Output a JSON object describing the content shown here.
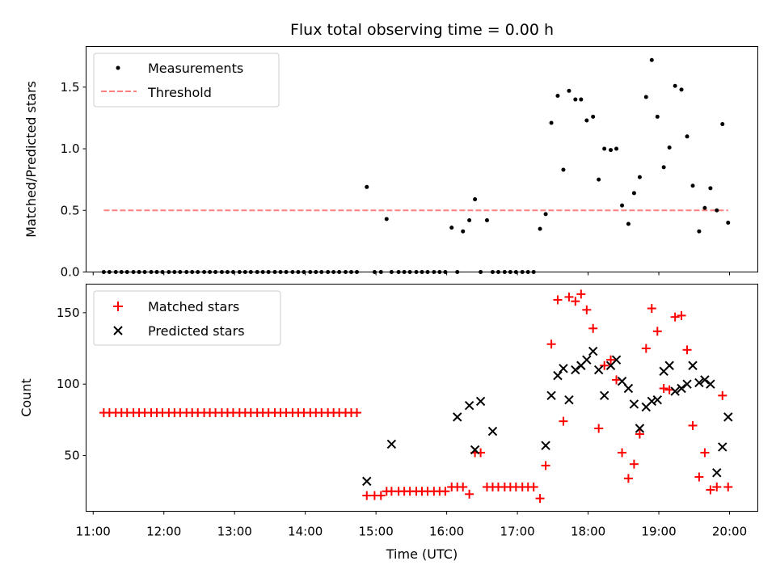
{
  "chart_data": [
    {
      "type": "scatter",
      "title": "Flux total observing time = 0.00 h",
      "xlabel": "",
      "ylabel": "Matched/Predicted stars",
      "xlim": [
        10.9,
        20.4
      ],
      "ylim": [
        0,
        1.83
      ],
      "yticks": [
        "0.0",
        "0.5",
        "1.0",
        "1.5"
      ],
      "ytick_values": [
        0,
        0.5,
        1.0,
        1.5
      ],
      "legend_position": "upper-left",
      "series": [
        {
          "name": "Measurements",
          "marker": "dot",
          "color": "#000000",
          "x": [
            11.15,
            11.23,
            11.32,
            11.4,
            11.48,
            11.57,
            11.65,
            11.73,
            11.82,
            11.9,
            11.98,
            12.07,
            12.15,
            12.23,
            12.32,
            12.4,
            12.48,
            12.57,
            12.65,
            12.73,
            12.82,
            12.9,
            12.98,
            13.07,
            13.15,
            13.23,
            13.32,
            13.4,
            13.48,
            13.57,
            13.65,
            13.73,
            13.82,
            13.9,
            13.98,
            14.07,
            14.15,
            14.23,
            14.32,
            14.4,
            14.48,
            14.57,
            14.65,
            14.73,
            14.87,
            14.98,
            15.07,
            15.15,
            15.22,
            15.32,
            15.4,
            15.48,
            15.57,
            15.65,
            15.73,
            15.82,
            15.9,
            15.98,
            16.07,
            16.15,
            16.23,
            16.32,
            16.4,
            16.48,
            16.57,
            16.65,
            16.73,
            16.82,
            16.9,
            16.98,
            17.07,
            17.15,
            17.23,
            17.32,
            17.4,
            17.48,
            17.57,
            17.65,
            17.73,
            17.82,
            17.9,
            17.98,
            18.07,
            18.15,
            18.23,
            18.32,
            18.4,
            18.48,
            18.57,
            18.65,
            18.73,
            18.82,
            18.9,
            18.98,
            19.07,
            19.15,
            19.23,
            19.32,
            19.4,
            19.48,
            19.57,
            19.65,
            19.73,
            19.82,
            19.9,
            19.98
          ],
          "y": [
            0,
            0,
            0,
            0,
            0,
            0,
            0,
            0,
            0,
            0,
            0,
            0,
            0,
            0,
            0,
            0,
            0,
            0,
            0,
            0,
            0,
            0,
            0,
            0,
            0,
            0,
            0,
            0,
            0,
            0,
            0,
            0,
            0,
            0,
            0,
            0,
            0,
            0,
            0,
            0,
            0,
            0,
            0,
            0,
            0.69,
            0,
            0,
            0.43,
            0,
            0,
            0,
            0,
            0,
            0,
            0,
            0,
            0,
            0,
            0.36,
            0,
            0.33,
            0.42,
            0.59,
            0,
            0.42,
            0,
            0,
            0,
            0,
            0,
            0,
            0,
            0,
            0.35,
            0.47,
            1.21,
            1.43,
            0.83,
            1.47,
            1.4,
            1.4,
            1.23,
            1.26,
            0.75,
            1.0,
            0.99,
            1.0,
            0.54,
            0.39,
            0.64,
            0.77,
            1.42,
            1.72,
            1.26,
            0.85,
            1.01,
            1.51,
            1.48,
            1.1,
            0.7,
            0.33,
            0.52,
            0.68,
            0.5,
            1.2,
            0.4
          ]
        },
        {
          "name": "Threshold",
          "marker": "dashed-line",
          "color": "#ff7f7f",
          "x": [
            11.15,
            19.98
          ],
          "y": [
            0.5,
            0.5
          ]
        }
      ]
    },
    {
      "type": "scatter",
      "title": "",
      "xlabel": "Time (UTC)",
      "ylabel": "Count",
      "xlim": [
        10.9,
        20.4
      ],
      "ylim": [
        11,
        170
      ],
      "yticks": [
        "50",
        "100",
        "150"
      ],
      "ytick_values": [
        50,
        100,
        150
      ],
      "xticks": [
        "11:00",
        "12:00",
        "13:00",
        "14:00",
        "15:00",
        "16:00",
        "17:00",
        "18:00",
        "19:00",
        "20:00"
      ],
      "xtick_values": [
        11,
        12,
        13,
        14,
        15,
        16,
        17,
        18,
        19,
        20
      ],
      "legend_position": "upper-left",
      "series": [
        {
          "name": "Matched stars",
          "marker": "plus",
          "color": "#ff0000",
          "x": [
            11.15,
            11.23,
            11.32,
            11.4,
            11.48,
            11.57,
            11.65,
            11.73,
            11.82,
            11.9,
            11.98,
            12.07,
            12.15,
            12.23,
            12.32,
            12.4,
            12.48,
            12.57,
            12.65,
            12.73,
            12.82,
            12.9,
            12.98,
            13.07,
            13.15,
            13.23,
            13.32,
            13.4,
            13.48,
            13.57,
            13.65,
            13.73,
            13.82,
            13.9,
            13.98,
            14.07,
            14.15,
            14.23,
            14.32,
            14.4,
            14.48,
            14.57,
            14.65,
            14.73,
            14.87,
            14.98,
            15.07,
            15.15,
            15.22,
            15.32,
            15.4,
            15.48,
            15.57,
            15.65,
            15.73,
            15.82,
            15.9,
            15.98,
            16.07,
            16.15,
            16.23,
            16.32,
            16.4,
            16.48,
            16.57,
            16.65,
            16.73,
            16.82,
            16.9,
            16.98,
            17.07,
            17.15,
            17.23,
            17.32,
            17.4,
            17.48,
            17.57,
            17.65,
            17.73,
            17.82,
            17.9,
            17.98,
            18.07,
            18.15,
            18.23,
            18.32,
            18.4,
            18.48,
            18.57,
            18.65,
            18.73,
            18.82,
            18.9,
            18.98,
            19.07,
            19.15,
            19.23,
            19.32,
            19.4,
            19.48,
            19.57,
            19.65,
            19.73,
            19.82,
            19.9,
            19.98
          ],
          "y": [
            80,
            80,
            80,
            80,
            80,
            80,
            80,
            80,
            80,
            80,
            80,
            80,
            80,
            80,
            80,
            80,
            80,
            80,
            80,
            80,
            80,
            80,
            80,
            80,
            80,
            80,
            80,
            80,
            80,
            80,
            80,
            80,
            80,
            80,
            80,
            80,
            80,
            80,
            80,
            80,
            80,
            80,
            80,
            80,
            22,
            22,
            22,
            25,
            25,
            25,
            25,
            25,
            25,
            25,
            25,
            25,
            25,
            25,
            28,
            28,
            28,
            23,
            52,
            52,
            28,
            28,
            28,
            28,
            28,
            28,
            28,
            28,
            28,
            20,
            43,
            128,
            159,
            74,
            161,
            158,
            163,
            152,
            139,
            69,
            113,
            117,
            103,
            52,
            34,
            44,
            65,
            125,
            153,
            137,
            97,
            96,
            147,
            148,
            124,
            71,
            35,
            52,
            26,
            28,
            92,
            28
          ]
        },
        {
          "name": "Predicted stars",
          "marker": "x",
          "color": "#000000",
          "x": [
            14.87,
            15.22,
            16.15,
            16.32,
            16.4,
            16.48,
            16.65,
            17.4,
            17.48,
            17.57,
            17.65,
            17.73,
            17.82,
            17.9,
            17.98,
            18.07,
            18.15,
            18.23,
            18.32,
            18.4,
            18.48,
            18.57,
            18.65,
            18.73,
            18.82,
            18.9,
            18.98,
            19.07,
            19.15,
            19.23,
            19.32,
            19.4,
            19.48,
            19.57,
            19.65,
            19.73,
            19.82,
            19.9,
            19.98
          ],
          "y": [
            32,
            58,
            77,
            85,
            54,
            88,
            67,
            57,
            92,
            106,
            111,
            89,
            110,
            113,
            117,
            123,
            110,
            92,
            113,
            117,
            102,
            97,
            86,
            69,
            84,
            88,
            89,
            109,
            113,
            95,
            97,
            100,
            113,
            101,
            103,
            100,
            38,
            56,
            77
          ]
        }
      ]
    }
  ]
}
